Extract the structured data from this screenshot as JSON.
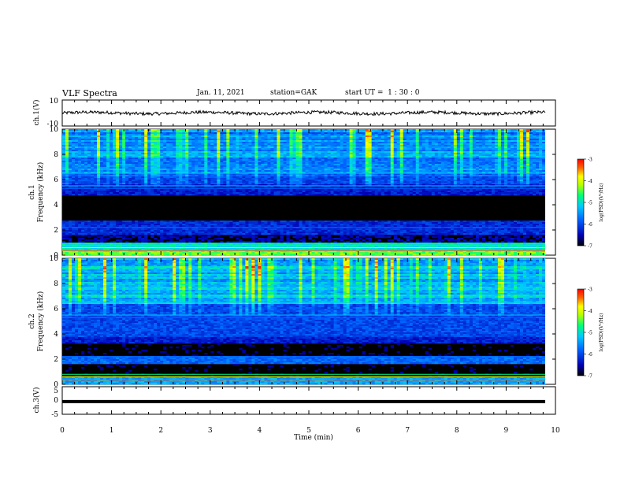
{
  "header": {
    "title": "VLF Spectra",
    "date": "Jan. 11, 2021",
    "station": "station=GAK",
    "start": "start UT =  1 : 30 : 0"
  },
  "chart_data": [
    {
      "type": "line",
      "panel": "ch1-waveform",
      "ylabel": "ch.1(V)",
      "ylim": [
        -10,
        10
      ],
      "yticks": [
        "10",
        "-10"
      ],
      "xlim": [
        0,
        10
      ],
      "line_color": "#000000",
      "description_level": "noisy trace near 0 V, amplitude about ±2 V"
    },
    {
      "type": "heatmap",
      "panel": "ch1-spectrogram",
      "ylabel": "ch.1\nFrequency (kHz)",
      "ylim": [
        0,
        10
      ],
      "yticks": [
        "0",
        "2",
        "4",
        "6",
        "8",
        "10"
      ],
      "xlim": [
        0,
        10
      ],
      "colorbar": {
        "label": "log(PSD)(V²/Hz)",
        "ticks": [
          "-3",
          "-4",
          "-5",
          "-6",
          "-7"
        ],
        "range": [
          -7,
          -3
        ]
      }
    },
    {
      "type": "heatmap",
      "panel": "ch2-spectrogram",
      "ylabel": "ch.2\nFrequency (kHz)",
      "ylim": [
        0,
        10
      ],
      "yticks": [
        "0",
        "2",
        "4",
        "6",
        "8",
        "10"
      ],
      "xlim": [
        0,
        10
      ],
      "colorbar": {
        "label": "log(PSD)(V²/Hz)",
        "ticks": [
          "-3",
          "-4",
          "-5",
          "-6",
          "-7"
        ],
        "range": [
          -7,
          -3
        ]
      }
    },
    {
      "type": "line",
      "panel": "ch3-waveform",
      "ylabel": "ch.3(V)",
      "ylim": [
        -5,
        5
      ],
      "yticks": [
        "5",
        "0",
        "-5"
      ],
      "xlim": [
        0,
        10
      ],
      "values_constant": -0.4,
      "line_color": "#000000"
    }
  ],
  "xaxis": {
    "label": "Time (min)",
    "ticks": [
      "0",
      "1",
      "2",
      "3",
      "4",
      "5",
      "6",
      "7",
      "8",
      "9",
      "10"
    ]
  },
  "colors": {
    "low": "#000000",
    "mid_low": "#0000aa",
    "mid": "#00c8ff",
    "mid_high": "#00ff55",
    "high_yellow": "#ffff00",
    "high": "#ff0000"
  }
}
